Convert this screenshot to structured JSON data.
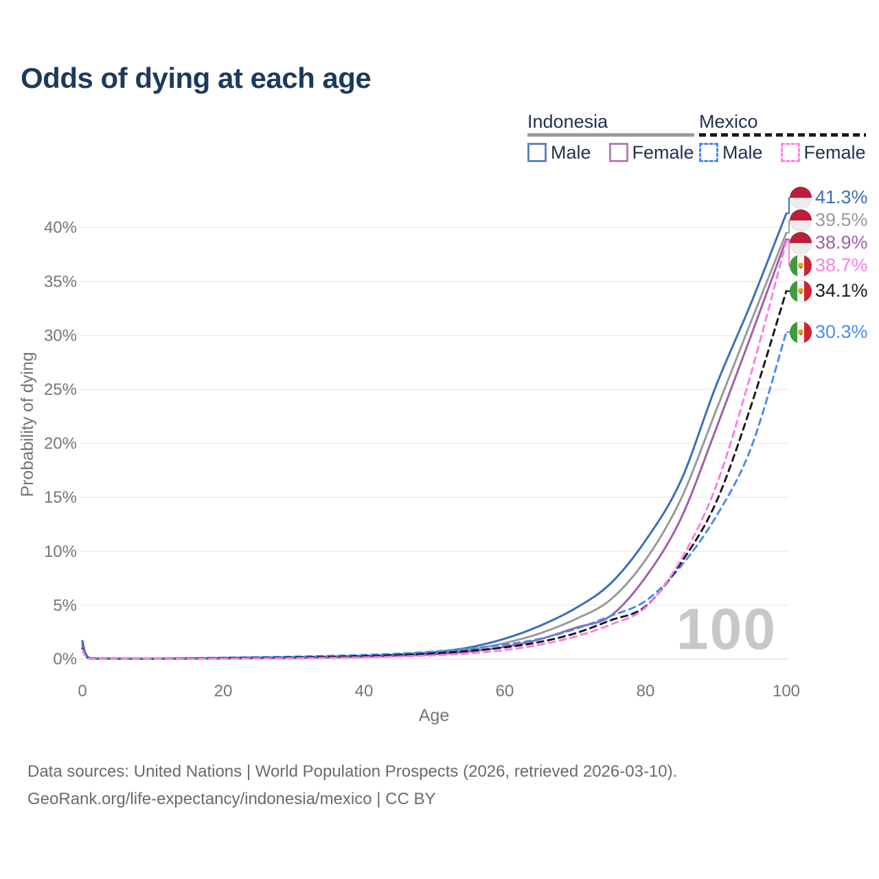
{
  "title": "Odds of dying at each age",
  "legend": {
    "groups": [
      {
        "name": "Indonesia",
        "line_style": "solid",
        "underline_color": "#9a9a9a",
        "items": [
          {
            "label": "Male",
            "color": "#5b85c4"
          },
          {
            "label": "Female",
            "color": "#bd7abc"
          }
        ]
      },
      {
        "name": "Mexico",
        "line_style": "dashed",
        "underline_color": "#1a1a1a",
        "items": [
          {
            "label": "Male",
            "color": "#4d8bf5"
          },
          {
            "label": "Female",
            "color": "#ff85e6"
          }
        ]
      }
    ]
  },
  "chart_data": {
    "type": "line",
    "title": "Odds of dying at each age",
    "xlabel": "Age",
    "ylabel": "Probability of dying",
    "watermark": "100",
    "xlim": [
      0,
      100
    ],
    "ylim": [
      0,
      43
    ],
    "grid": "horizontal",
    "x_ticks": [
      {
        "value": 0,
        "label": "0"
      },
      {
        "value": 20,
        "label": "20"
      },
      {
        "value": 40,
        "label": "40"
      },
      {
        "value": 60,
        "label": "60"
      },
      {
        "value": 80,
        "label": "80"
      },
      {
        "value": 100,
        "label": "100"
      }
    ],
    "y_ticks": [
      {
        "value": 0,
        "label": "0%"
      },
      {
        "value": 5,
        "label": "5%"
      },
      {
        "value": 10,
        "label": "10%"
      },
      {
        "value": 15,
        "label": "15%"
      },
      {
        "value": 20,
        "label": "20%"
      },
      {
        "value": 25,
        "label": "25%"
      },
      {
        "value": 30,
        "label": "30%"
      },
      {
        "value": 35,
        "label": "35%"
      },
      {
        "value": 40,
        "label": "40%"
      }
    ],
    "ages": [
      0,
      1,
      5,
      10,
      15,
      20,
      25,
      30,
      35,
      40,
      45,
      50,
      55,
      60,
      65,
      70,
      75,
      80,
      85,
      90,
      95,
      100
    ],
    "series": [
      {
        "name": "Indonesia Male",
        "country": "Indonesia",
        "sex": "Male",
        "color": "#3a6db8",
        "dashed": false,
        "flag": "indonesia",
        "end_value": 41.3,
        "end_label": "41.3%",
        "values": [
          1.7,
          0.12,
          0.07,
          0.06,
          0.09,
          0.13,
          0.16,
          0.19,
          0.24,
          0.31,
          0.45,
          0.65,
          1.1,
          1.9,
          3.1,
          4.7,
          7.0,
          11.0,
          16.5,
          25.3,
          33.0,
          41.3
        ]
      },
      {
        "name": "Indonesia Both sexes",
        "country": "Indonesia",
        "sex": "Both",
        "color": "#999999",
        "dashed": false,
        "flag": "indonesia",
        "end_value": 39.5,
        "end_label": "39.5%",
        "values": [
          1.5,
          0.1,
          0.06,
          0.05,
          0.07,
          0.1,
          0.12,
          0.15,
          0.2,
          0.26,
          0.38,
          0.55,
          0.9,
          1.5,
          2.4,
          3.7,
          5.5,
          9.2,
          14.8,
          23.0,
          31.3,
          39.5
        ]
      },
      {
        "name": "Indonesia Female",
        "country": "Indonesia",
        "sex": "Female",
        "color": "#a05fa8",
        "dashed": false,
        "flag": "indonesia",
        "end_value": 38.9,
        "end_label": "38.9%",
        "values": [
          1.3,
          0.09,
          0.05,
          0.04,
          0.05,
          0.07,
          0.09,
          0.12,
          0.16,
          0.22,
          0.31,
          0.46,
          0.72,
          1.15,
          1.85,
          2.9,
          4.0,
          7.6,
          13.0,
          21.3,
          30.0,
          38.9
        ]
      },
      {
        "name": "Mexico Female",
        "country": "Mexico",
        "sex": "Female",
        "color": "#ff7de0",
        "dashed": true,
        "flag": "mexico",
        "end_value": 38.7,
        "end_label": "38.7%",
        "values": [
          0.9,
          0.05,
          0.03,
          0.03,
          0.04,
          0.06,
          0.08,
          0.1,
          0.13,
          0.18,
          0.25,
          0.36,
          0.55,
          0.85,
          1.35,
          2.1,
          3.2,
          4.8,
          9.2,
          16.0,
          26.5,
          38.7
        ]
      },
      {
        "name": "Mexico Both sexes",
        "country": "Mexico",
        "sex": "Both",
        "color": "#1a1a1a",
        "dashed": true,
        "flag": "mexico",
        "end_value": 34.1,
        "end_label": "34.1%",
        "values": [
          1.0,
          0.06,
          0.035,
          0.035,
          0.06,
          0.1,
          0.13,
          0.17,
          0.22,
          0.29,
          0.39,
          0.54,
          0.78,
          1.1,
          1.6,
          2.4,
          3.6,
          4.9,
          8.9,
          14.5,
          23.5,
          34.1
        ]
      },
      {
        "name": "Mexico Male",
        "country": "Mexico",
        "sex": "Male",
        "color": "#4b8bf0",
        "dashed": true,
        "flag": "mexico",
        "end_value": 30.3,
        "end_label": "30.3%",
        "values": [
          1.2,
          0.07,
          0.04,
          0.04,
          0.08,
          0.14,
          0.19,
          0.24,
          0.31,
          0.4,
          0.53,
          0.72,
          1.0,
          1.35,
          1.9,
          2.8,
          4.0,
          5.4,
          8.6,
          13.2,
          19.6,
          30.3
        ]
      }
    ]
  },
  "footer": {
    "line1": "Data sources: United Nations | World Population Prospects (2026, retrieved 2026-03-10).",
    "line2": "GeoRank.org/life-expectancy/indonesia/mexico | CC BY"
  }
}
